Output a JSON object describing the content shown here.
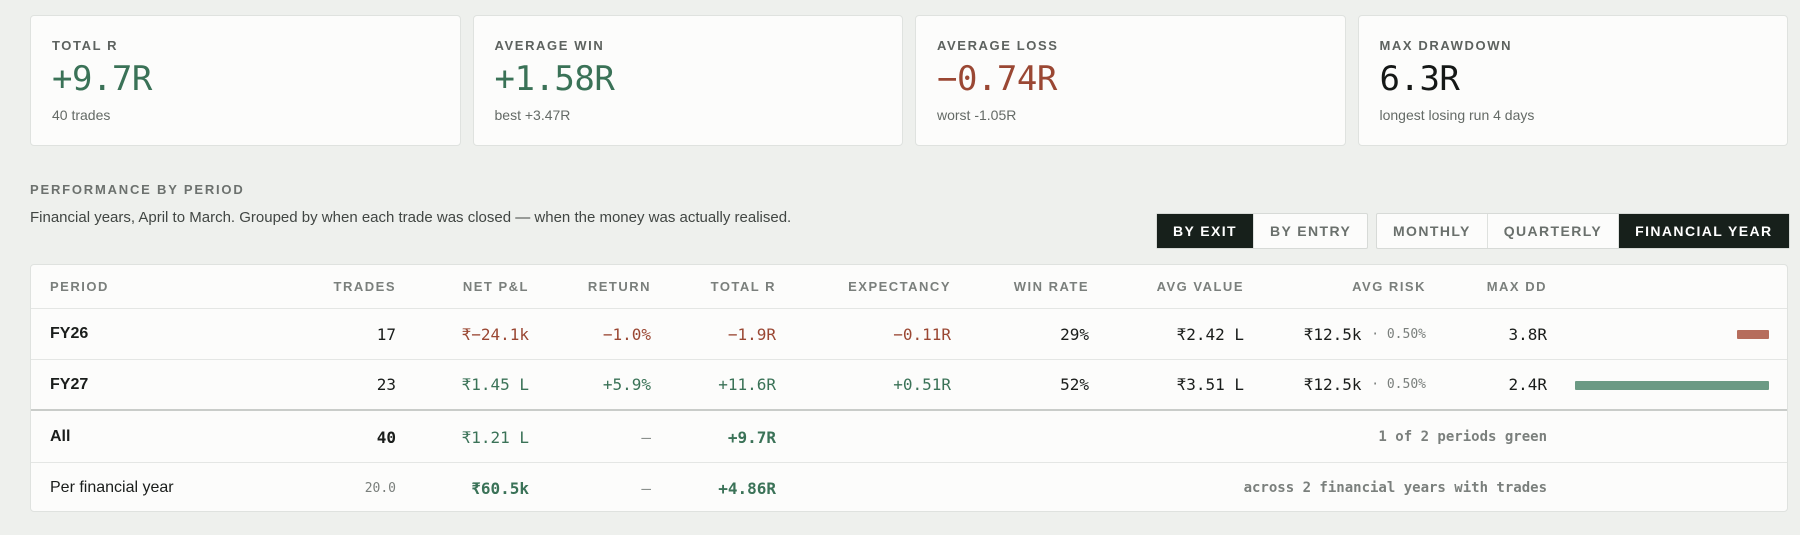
{
  "kpis": [
    {
      "label": "TOTAL R",
      "value": "+9.7R",
      "sub": "40 trades",
      "tone": "pos"
    },
    {
      "label": "AVERAGE WIN",
      "value": "+1.58R",
      "sub": "best +3.47R",
      "tone": "pos"
    },
    {
      "label": "AVERAGE LOSS",
      "value": "−0.74R",
      "sub": "worst -1.05R",
      "tone": "neg"
    },
    {
      "label": "MAX DRAWDOWN",
      "value": "6.3R",
      "sub": "longest losing run 4 days",
      "tone": "neutral"
    }
  ],
  "section": {
    "title": "PERFORMANCE BY PERIOD",
    "description": "Financial years, April to March. Grouped by when each trade was closed — when the money was actually realised."
  },
  "toggles": {
    "basis": [
      {
        "label": "BY EXIT",
        "active": true
      },
      {
        "label": "BY ENTRY",
        "active": false
      }
    ],
    "grouping": [
      {
        "label": "MONTHLY",
        "active": false
      },
      {
        "label": "QUARTERLY",
        "active": false
      },
      {
        "label": "FINANCIAL YEAR",
        "active": true
      }
    ]
  },
  "table": {
    "headers": {
      "period": "PERIOD",
      "trades": "TRADES",
      "net_pnl": "NET P&L",
      "return": "RETURN",
      "total_r": "TOTAL R",
      "expectancy": "EXPECTANCY",
      "win_rate": "WIN RATE",
      "avg_value": "AVG VALUE",
      "avg_risk": "AVG RISK",
      "max_dd": "MAX DD"
    },
    "rows": [
      {
        "period": "FY26",
        "trades": "17",
        "net_pnl": "₹−24.1k",
        "return": "−1.0%",
        "total_r": "−1.9R",
        "expectancy": "−0.11R",
        "win_rate": "29%",
        "avg_value": "₹2.42 L",
        "avg_risk": "₹12.5k",
        "avg_risk_pct": "· 0.50%",
        "max_dd": "3.8R",
        "bar_r": -1.9,
        "tone": "neg"
      },
      {
        "period": "FY27",
        "trades": "23",
        "net_pnl": "₹1.45 L",
        "return": "+5.9%",
        "total_r": "+11.6R",
        "expectancy": "+0.51R",
        "win_rate": "52%",
        "avg_value": "₹3.51 L",
        "avg_risk": "₹12.5k",
        "avg_risk_pct": "· 0.50%",
        "max_dd": "2.4R",
        "bar_r": 11.6,
        "tone": "pos"
      }
    ],
    "total": {
      "period": "All",
      "trades": "40",
      "net_pnl": "₹1.21 L",
      "return": "–",
      "total_r": "+9.7R",
      "note": "1 of 2 periods green"
    },
    "per_year": {
      "period": "Per financial year",
      "trades": "20.0",
      "net_pnl": "₹60.5k",
      "return": "–",
      "total_r": "+4.86R",
      "note": "across 2 financial years with trades"
    }
  },
  "colors": {
    "positive": "#3a7257",
    "negative": "#9a4733",
    "bar_positive": "#6b9a84",
    "bar_negative": "#b66d5c"
  }
}
